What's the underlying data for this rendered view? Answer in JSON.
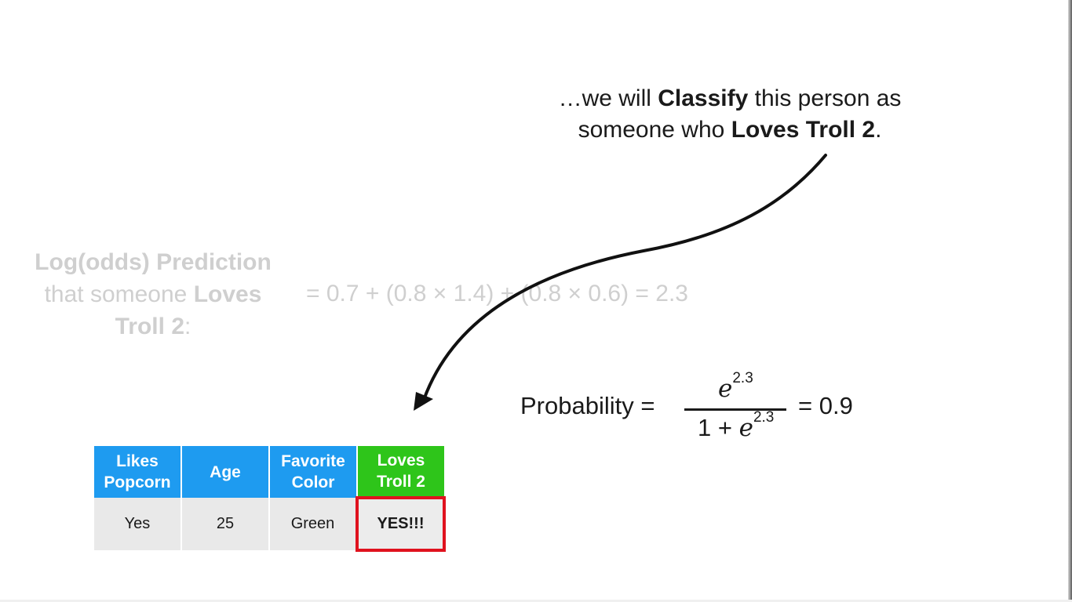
{
  "caption": {
    "line1_pre": "…we will ",
    "line1_bold": "Classify",
    "line1_post": " this person as",
    "line2_pre": "someone who ",
    "line2_bold": "Loves Troll 2",
    "line2_post": "."
  },
  "log_odds": {
    "label_line1": "Log(odds) Prediction",
    "label_line2_pre": "that someone ",
    "label_line2_bold": "Loves",
    "label_line3_bold": "Troll 2",
    "label_line3_post": ":",
    "equation": "= 0.7 + (0.8 × 1.4) + (0.8 × 0.6) = 2.3"
  },
  "probability": {
    "label": "Probability =",
    "numerator_base": "e",
    "numerator_exp": "2.3",
    "denominator_prefix": "1 + ",
    "denominator_base": "e",
    "denominator_exp": "2.3",
    "result": "= 0.9"
  },
  "table": {
    "headers": [
      {
        "line1": "Likes",
        "line2": "Popcorn"
      },
      {
        "line1": "Age",
        "line2": ""
      },
      {
        "line1": "Favorite",
        "line2": "Color"
      },
      {
        "line1": "Loves",
        "line2": "Troll 2"
      }
    ],
    "row": [
      "Yes",
      "25",
      "Green",
      "YES!!!"
    ]
  },
  "colors": {
    "header_blue": "#1e9bf0",
    "header_green": "#2ec51a",
    "highlight_red": "#e0121e",
    "faded_text": "#cfcfcf"
  }
}
